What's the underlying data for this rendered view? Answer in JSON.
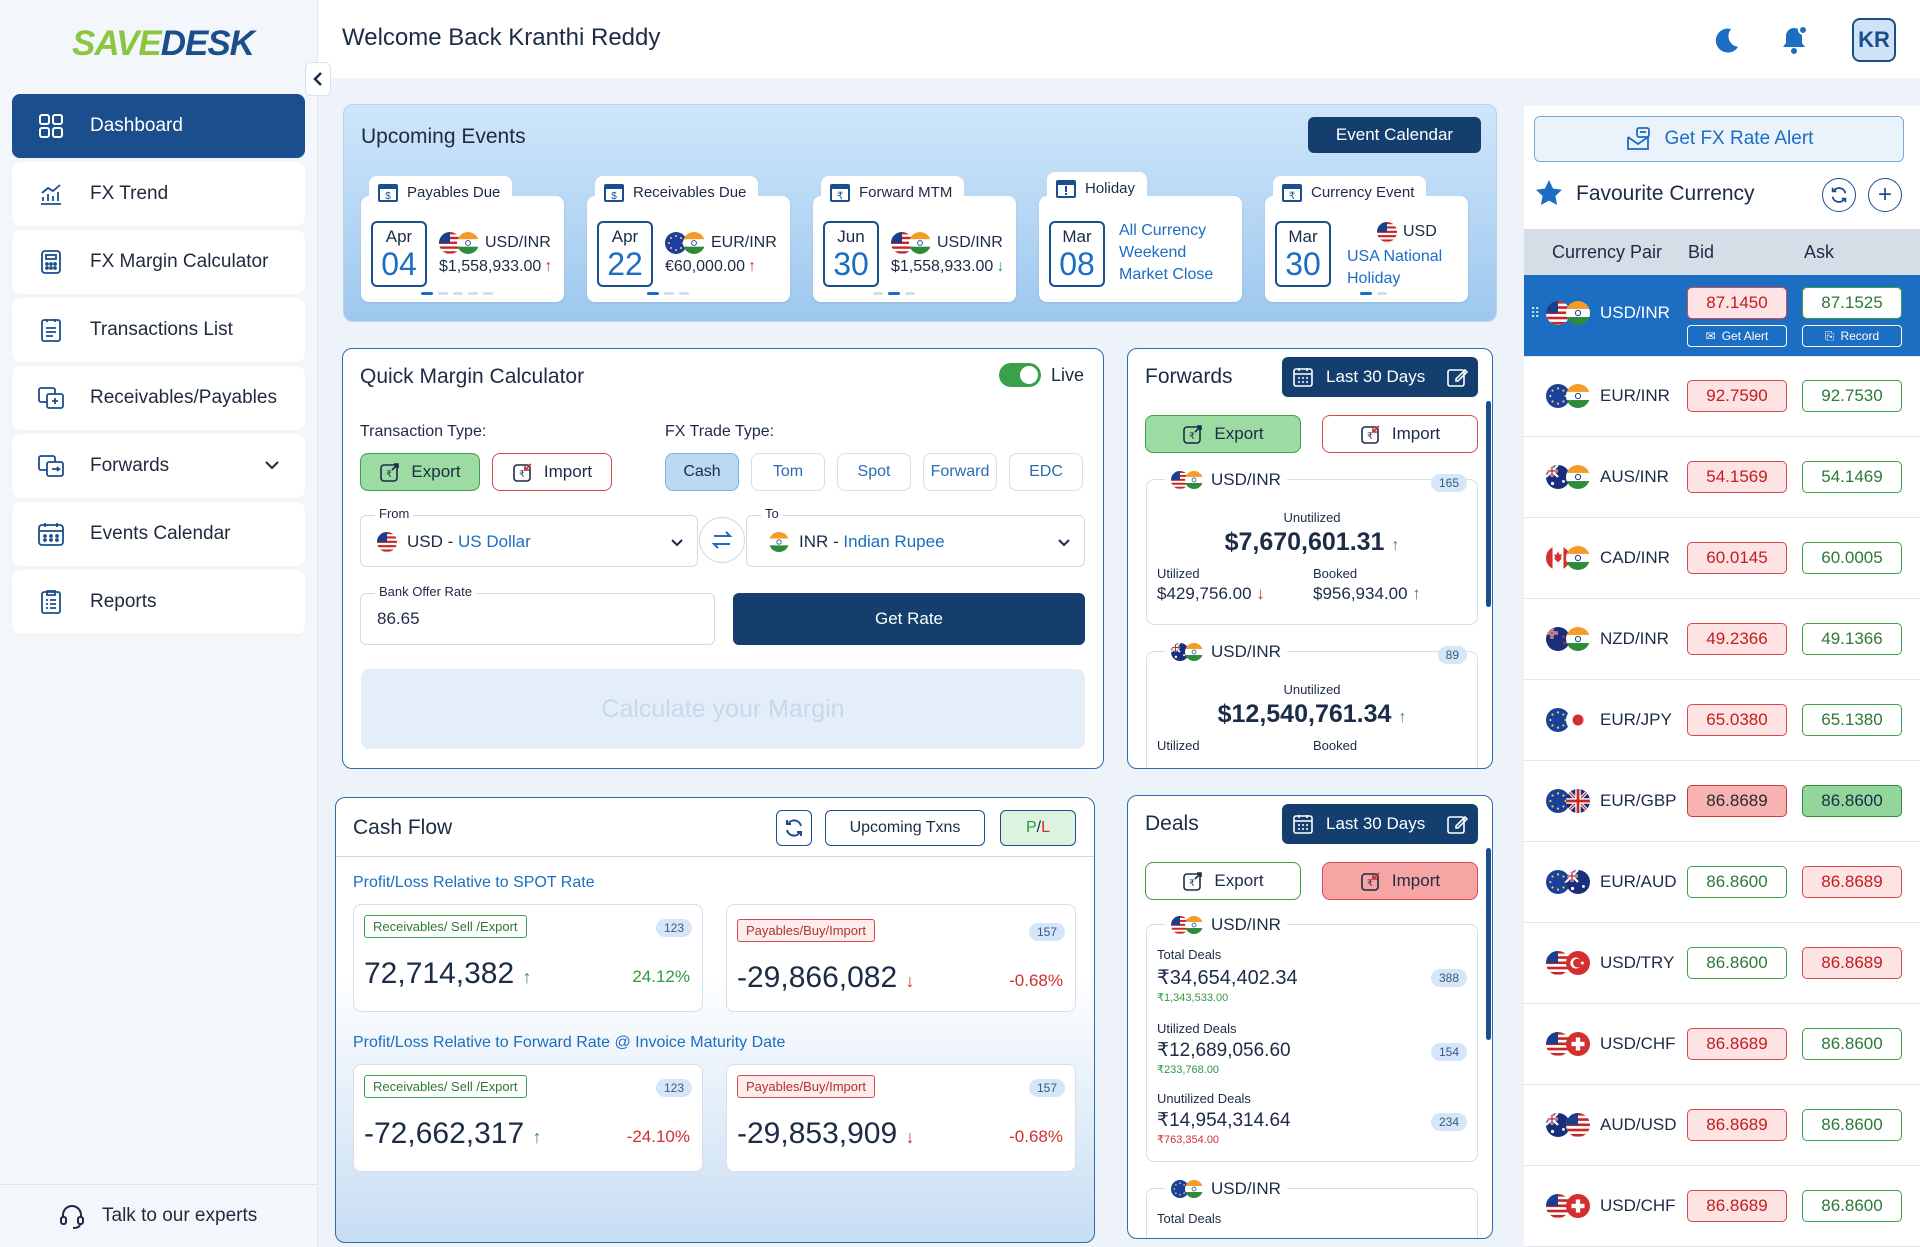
{
  "brand": {
    "logo_a": "SAVE",
    "logo_b": "DESK"
  },
  "sidebar": {
    "items": [
      {
        "label": "Dashboard",
        "icon": "dashboard-icon"
      },
      {
        "label": "FX Trend",
        "icon": "chart-icon"
      },
      {
        "label": "FX Margin Calculator",
        "icon": "calculator-icon"
      },
      {
        "label": "Transactions List",
        "icon": "list-icon"
      },
      {
        "label": "Receivables/Payables",
        "icon": "exchange-icon"
      },
      {
        "label": "Forwards",
        "icon": "forwards-icon"
      },
      {
        "label": "Events Calendar",
        "icon": "calendar-icon"
      },
      {
        "label": "Reports",
        "icon": "reports-icon"
      }
    ],
    "talk": "Talk to our experts"
  },
  "header": {
    "welcome": "Welcome Back Kranthi Reddy",
    "avatar": "KR"
  },
  "events": {
    "title": "Upcoming Events",
    "calendar_btn": "Event Calendar",
    "cards": [
      {
        "tab": "Payables Due",
        "month": "Apr",
        "day": "04",
        "pair": "USD/INR",
        "amount": "$1,558,933.00",
        "trend": "up"
      },
      {
        "tab": "Receivables Due",
        "month": "Apr",
        "day": "22",
        "pair": "EUR/INR",
        "amount": "€60,000.00",
        "trend": "up"
      },
      {
        "tab": "Forward MTM",
        "month": "Jun",
        "day": "30",
        "pair": "USD/INR",
        "amount": "$1,558,933.00",
        "trend": "down"
      },
      {
        "tab": "Holiday",
        "month": "Mar",
        "day": "08",
        "text": "All Currency Weekend Market Close"
      },
      {
        "tab": "Currency Event",
        "month": "Mar",
        "day": "30",
        "pair": "USD",
        "text": "USA National Holiday"
      }
    ]
  },
  "qmc": {
    "title": "Quick Margin Calculator",
    "live": "Live",
    "tx_type_label": "Transaction Type:",
    "trade_type_label": "FX Trade Type:",
    "export": "Export",
    "import": "Import",
    "trade_types": [
      "Cash",
      "Tom",
      "Spot",
      "Forward",
      "EDC"
    ],
    "from_label": "From",
    "from_code": "USD - ",
    "from_name": "US Dollar",
    "to_label": "To",
    "to_code": "INR - ",
    "to_name": "Indian Rupee",
    "rate_label": "Bank Offer Rate",
    "rate_value": "86.65",
    "get_rate": "Get Rate",
    "calc": "Calculate your Margin"
  },
  "forwards": {
    "title": "Forwards",
    "range": "Last 30 Days",
    "export": "Export",
    "import": "Import",
    "cards": [
      {
        "pair": "USD/INR",
        "count": "165",
        "unutil_label": "Unutilized",
        "unutil": "$7,670,601.31",
        "util_label": "Utilized",
        "util": "$429,756.00",
        "booked_label": "Booked",
        "booked": "$956,934.00"
      },
      {
        "pair": "USD/INR",
        "count": "89",
        "unutil_label": "Unutilized",
        "unutil": "$12,540,761.34",
        "util_label": "Utilized",
        "booked_label": "Booked"
      }
    ]
  },
  "deals": {
    "title": "Deals",
    "range": "Last 30 Days",
    "export": "Export",
    "import": "Import",
    "card": {
      "pair": "USD/INR",
      "rows": [
        {
          "label": "Total Deals",
          "value": "₹34,654,402.34",
          "sub": "₹1,343,533.00",
          "count": "388",
          "subcolor": "#2f9a3f"
        },
        {
          "label": "Utilized Deals",
          "value": "₹12,689,056.60",
          "sub": "₹233,768.00",
          "count": "154",
          "subcolor": "#2f9a3f"
        },
        {
          "label": "Unutilized Deals",
          "value": "₹14,954,314.64",
          "sub": "₹763,354.00",
          "count": "234",
          "subcolor": "#d32f2f"
        }
      ]
    },
    "card2": {
      "pair": "USD/INR",
      "label": "Total Deals"
    }
  },
  "cash": {
    "title": "Cash Flow",
    "upcoming": "Upcoming Txns",
    "pl_p": "P",
    "pl_sep": " / ",
    "pl_l": "L",
    "spot_title": "Profit/Loss Relative to SPOT Rate",
    "fwd_title": "Profit/Loss Relative to Forward Rate @ Invoice Maturity Date",
    "spot": [
      {
        "tag": "Receivables/ Sell /Export",
        "count": "123",
        "value": "72,714,382",
        "pct": "24.12%",
        "dir": "up"
      },
      {
        "tag": "Payables/Buy/Import",
        "count": "157",
        "value": "-29,866,082",
        "pct": "-0.68%",
        "dir": "down"
      }
    ],
    "fwd": [
      {
        "tag": "Receivables/ Sell /Export",
        "count": "123",
        "value": "-72,662,317",
        "pct": "-24.10%",
        "dir": "up"
      },
      {
        "tag": "Payables/Buy/Import",
        "count": "157",
        "value": "-29,853,909",
        "pct": "-0.68%",
        "dir": "down"
      }
    ]
  },
  "fav": {
    "alert_btn": "Get FX Rate Alert",
    "title": "Favourite Currency",
    "headers": [
      "Currency Pair",
      "Bid",
      "Ask"
    ],
    "get_alert": "Get Alert",
    "record": "Record",
    "rows": [
      {
        "pair": "USD/INR",
        "bid": "87.1450",
        "ask": "87.1525",
        "bidc": "red",
        "askc": "grn",
        "f1": "us",
        "f2": "in"
      },
      {
        "pair": "EUR/INR",
        "bid": "92.7590",
        "ask": "92.7530",
        "bidc": "red",
        "askc": "grn",
        "f1": "eu",
        "f2": "in"
      },
      {
        "pair": "AUS/INR",
        "bid": "54.1569",
        "ask": "54.1469",
        "bidc": "red",
        "askc": "grn",
        "f1": "au",
        "f2": "in"
      },
      {
        "pair": "CAD/INR",
        "bid": "60.0145",
        "ask": "60.0005",
        "bidc": "red",
        "askc": "grn",
        "f1": "ca",
        "f2": "in"
      },
      {
        "pair": "NZD/INR",
        "bid": "49.2366",
        "ask": "49.1366",
        "bidc": "red",
        "askc": "grn",
        "f1": "nz",
        "f2": "in"
      },
      {
        "pair": "EUR/JPY",
        "bid": "65.0380",
        "ask": "65.1380",
        "bidc": "red",
        "askc": "grn",
        "f1": "eu",
        "f2": "jp"
      },
      {
        "pair": "EUR/GBP",
        "bid": "86.8689",
        "ask": "86.8600",
        "bidc": "redf",
        "askc": "grnf",
        "f1": "eu",
        "f2": "gb"
      },
      {
        "pair": "EUR/AUD",
        "bid": "86.8600",
        "ask": "86.8689",
        "bidc": "grn",
        "askc": "red",
        "f1": "eu",
        "f2": "au"
      },
      {
        "pair": "USD/TRY",
        "bid": "86.8600",
        "ask": "86.8689",
        "bidc": "grn",
        "askc": "red",
        "f1": "us",
        "f2": "tr"
      },
      {
        "pair": "USD/CHF",
        "bid": "86.8689",
        "ask": "86.8600",
        "bidc": "red",
        "askc": "grn",
        "f1": "us",
        "f2": "ch"
      },
      {
        "pair": "AUD/USD",
        "bid": "86.8689",
        "ask": "86.8600",
        "bidc": "red",
        "askc": "grn",
        "f1": "au",
        "f2": "us"
      },
      {
        "pair": "USD/CHF",
        "bid": "86.8689",
        "ask": "86.8600",
        "bidc": "red",
        "askc": "grn",
        "f1": "us",
        "f2": "ch"
      }
    ]
  },
  "colors": {
    "primary": "#1b4e8c",
    "accent": "#1b6ec2",
    "positive": "#2f9a3f",
    "negative": "#d32f2f"
  }
}
